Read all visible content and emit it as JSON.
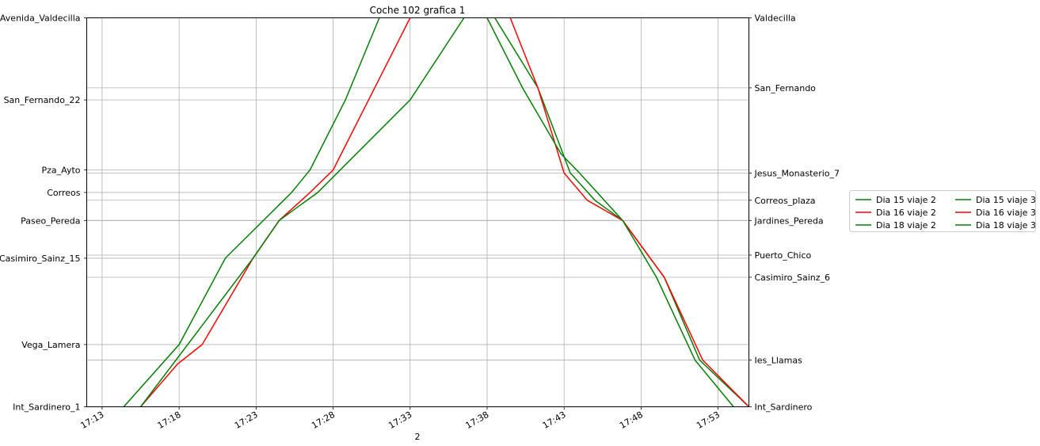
{
  "chart_data": {
    "type": "line",
    "title": "Coche 102 grafica 1",
    "xlabel": "2",
    "grid": true,
    "xlim": [
      "17:12",
      "17:55"
    ],
    "x_ticks": [
      "17:13",
      "17:18",
      "17:23",
      "17:28",
      "17:33",
      "17:38",
      "17:43",
      "17:48",
      "17:53"
    ],
    "left_axis": {
      "ticks": [
        {
          "label": "Avenida_Valdecilla",
          "pos": 1.0
        },
        {
          "label": "San_Fernando_22",
          "pos": 0.789
        },
        {
          "label": "Pza_Ayto",
          "pos": 0.609
        },
        {
          "label": "Correos",
          "pos": 0.551
        },
        {
          "label": "Paseo_Pereda",
          "pos": 0.479
        },
        {
          "label": "Casimiro_Sainz_15",
          "pos": 0.382
        },
        {
          "label": "Vega_Lamera",
          "pos": 0.16
        },
        {
          "label": "Int_Sardinero_1",
          "pos": 0.0
        }
      ]
    },
    "right_axis": {
      "ticks": [
        {
          "label": "Valdecilla",
          "pos": 1.0
        },
        {
          "label": "San_Fernando",
          "pos": 0.82
        },
        {
          "label": "Jesus_Monasterio_7",
          "pos": 0.601
        },
        {
          "label": "Correos_plaza",
          "pos": 0.531
        },
        {
          "label": "Jardines_Pereda",
          "pos": 0.479
        },
        {
          "label": "Puerto_Chico",
          "pos": 0.39
        },
        {
          "label": "Casimiro_Sainz_6",
          "pos": 0.333
        },
        {
          "label": "Ies_Llamas",
          "pos": 0.12
        },
        {
          "label": "Int_Sardinero",
          "pos": 0.0
        }
      ]
    },
    "ylim": [
      0,
      1
    ],
    "legend_placement": "right",
    "series": [
      {
        "name": "Dia 15 viaje 2",
        "color": "#008000",
        "points": [
          [
            "17:14.4",
            0.0
          ],
          [
            "17:18.0",
            0.16
          ],
          [
            "17:21.0",
            0.382
          ],
          [
            "17:25.3",
            0.551
          ],
          [
            "17:26.5",
            0.609
          ],
          [
            "17:28.8",
            0.789
          ],
          [
            "17:31.0",
            1.0
          ]
        ]
      },
      {
        "name": "Dia 16 viaje 2",
        "color": "#ff0000",
        "points": [
          [
            "17:15.5",
            0.0
          ],
          [
            "17:17.9",
            0.11
          ],
          [
            "17:19.5",
            0.16
          ],
          [
            "17:22.8",
            0.382
          ],
          [
            "17:24.5",
            0.479
          ],
          [
            "17:26.5",
            0.551
          ],
          [
            "17:28.0",
            0.609
          ],
          [
            "17:33.0",
            1.0
          ]
        ]
      },
      {
        "name": "Dia 18 viaje 2",
        "color": "#008000",
        "points": [
          [
            "17:15.5",
            0.0
          ],
          [
            "17:22.8",
            0.382
          ],
          [
            "17:24.5",
            0.479
          ],
          [
            "17:27.0",
            0.551
          ],
          [
            "17:33.0",
            0.789
          ],
          [
            "17:36.5",
            1.0
          ]
        ]
      },
      {
        "name": "Dia 15 viaje 3",
        "color": "#008000",
        "points": [
          [
            "17:38.5",
            1.0
          ],
          [
            "17:41.3",
            0.82
          ],
          [
            "17:43.4",
            0.601
          ],
          [
            "17:45.0",
            0.531
          ],
          [
            "17:46.8",
            0.479
          ],
          [
            "17:49.5",
            0.333
          ],
          [
            "17:51.8",
            0.12
          ],
          [
            "17:55.0",
            0.0
          ]
        ]
      },
      {
        "name": "Dia 16 viaje 3",
        "color": "#ff0000",
        "points": [
          [
            "17:39.5",
            1.0
          ],
          [
            "17:41.3",
            0.82
          ],
          [
            "17:43.0",
            0.601
          ],
          [
            "17:44.5",
            0.531
          ],
          [
            "17:46.8",
            0.479
          ],
          [
            "17:49.5",
            0.333
          ],
          [
            "17:52.0",
            0.12
          ],
          [
            "17:55.0",
            0.0
          ]
        ]
      },
      {
        "name": "Dia 18 viaje 3",
        "color": "#008000",
        "points": [
          [
            "17:38.0",
            1.0
          ],
          [
            "17:40.3",
            0.82
          ],
          [
            "17:42.8",
            0.65
          ],
          [
            "17:44.0",
            0.601
          ],
          [
            "17:46.8",
            0.479
          ],
          [
            "17:49.0",
            0.333
          ],
          [
            "17:51.5",
            0.12
          ],
          [
            "17:54.0",
            0.0
          ]
        ]
      }
    ]
  }
}
